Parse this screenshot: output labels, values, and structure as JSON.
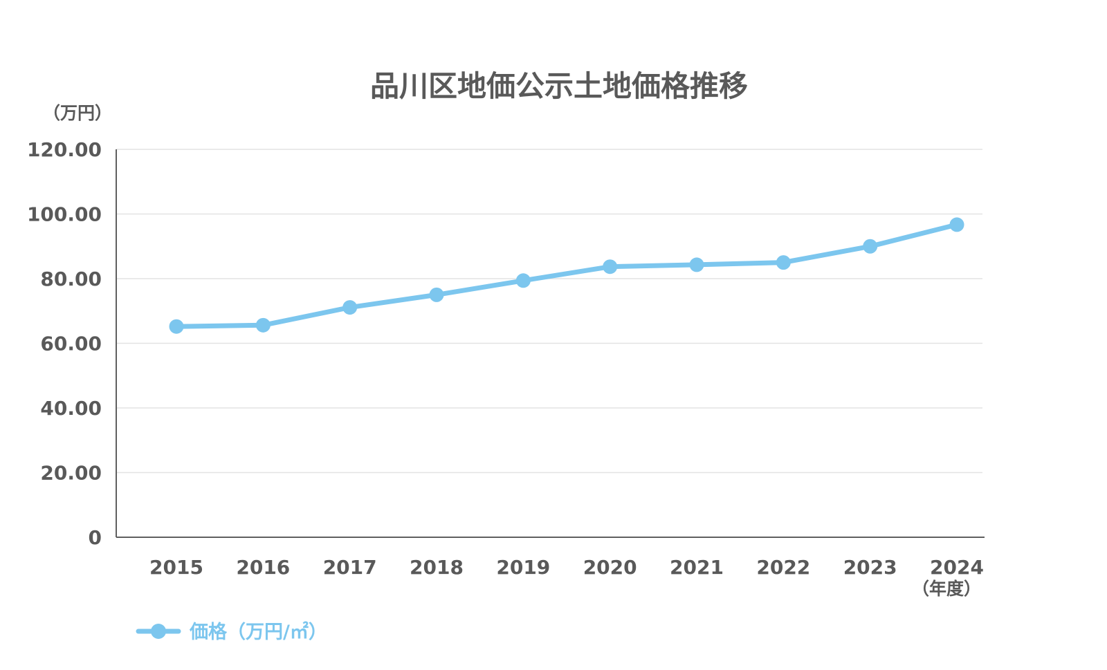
{
  "chart_data": {
    "type": "line",
    "title": "品川区地価公示土地価格推移",
    "y_unit_label": "（万円）",
    "x_unit_label": "（年度）",
    "categories": [
      "2015",
      "2016",
      "2017",
      "2018",
      "2019",
      "2020",
      "2021",
      "2022",
      "2023",
      "2024"
    ],
    "series": [
      {
        "name": "価格（万円/㎡）",
        "values": [
          65.2,
          65.6,
          71.1,
          75.0,
          79.4,
          83.7,
          84.3,
          85.0,
          90.0,
          96.7
        ],
        "color": "#7cc6ee"
      }
    ],
    "y_ticks": [
      "0",
      "20.00",
      "40.00",
      "60.00",
      "80.00",
      "100.00",
      "120.00"
    ],
    "ylim": [
      0,
      120
    ],
    "grid": true,
    "legend_position": "bottom-left"
  }
}
